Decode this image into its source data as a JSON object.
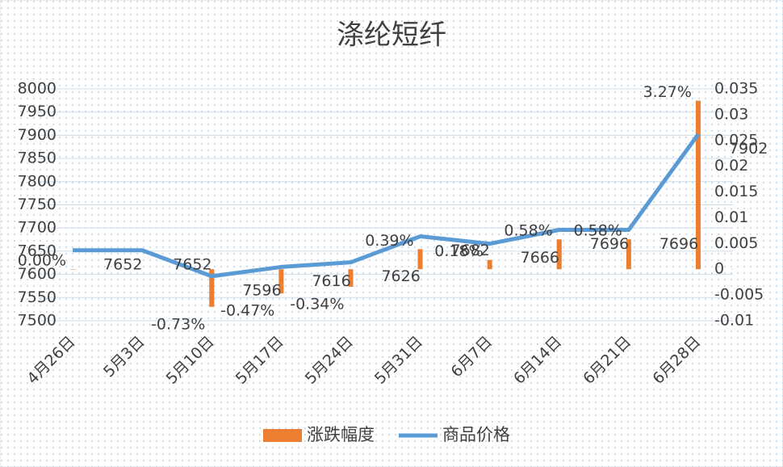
{
  "chart_data": {
    "type": "bar-line",
    "title": "涤纶短纤",
    "categories": [
      "4月26日",
      "5月3日",
      "5月10日",
      "5月17日",
      "5月24日",
      "5月31日",
      "6月7日",
      "6月14日",
      "6月21日",
      "6月28日"
    ],
    "series": [
      {
        "name": "涨跌幅度",
        "type": "bar",
        "axis": "y2",
        "color": "#ed7d31",
        "values": [
          0,
          null,
          -0.0073,
          -0.0047,
          -0.0034,
          0.0039,
          0.0018,
          0.0058,
          0.0058,
          0.0327
        ],
        "value_labels": [
          "0.00%",
          null,
          "-0.73%",
          "-0.47%",
          "-0.34%",
          "0.39%",
          "0.18%",
          "0.58%",
          "0.58%",
          "3.27%"
        ]
      },
      {
        "name": "商品价格",
        "type": "line",
        "color": "#5b9bd5",
        "values": [
          7652,
          7652,
          7596,
          7616,
          7626,
          7682,
          7666,
          7696,
          7696,
          7902
        ]
      }
    ],
    "ylim": [
      7500,
      8000
    ],
    "yticks": [
      7500,
      7550,
      7600,
      7650,
      7700,
      7750,
      7800,
      7850,
      7900,
      7950,
      8000
    ],
    "y2lim": [
      -0.01,
      0.035
    ],
    "y2ticks": [
      -0.01,
      -0.005,
      0,
      0.005,
      0.01,
      0.015,
      0.02,
      0.025,
      0.03,
      0.035
    ],
    "grid": true
  }
}
